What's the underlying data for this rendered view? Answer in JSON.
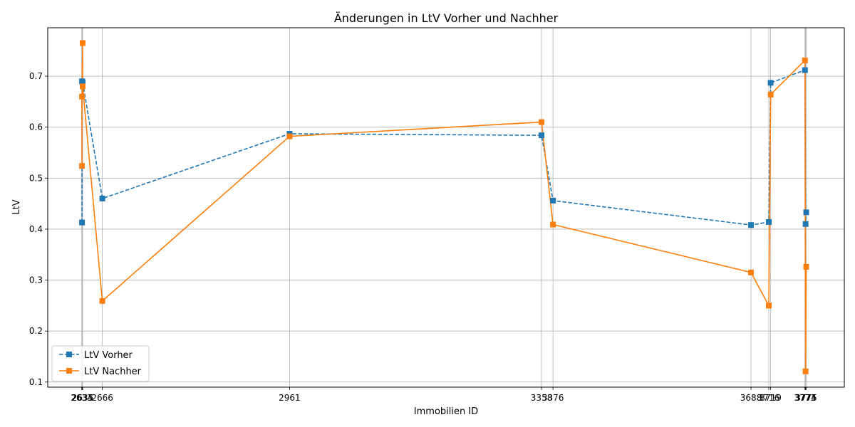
{
  "chart_data": {
    "type": "line",
    "title": "Änderungen in LtV Vorher und Nachher",
    "xlabel": "Immobilien ID",
    "ylabel": "LtV",
    "x": [
      2634,
      2634,
      2635,
      2635,
      2666,
      2961,
      3358,
      3376,
      3688,
      3716,
      3719,
      3773,
      3774,
      3775
    ],
    "xlim": [
      2580,
      3835
    ],
    "ylim": [
      0.09,
      0.795
    ],
    "yticks": [
      0.1,
      0.2,
      0.3,
      0.4,
      0.5,
      0.6,
      0.7
    ],
    "ytick_labels": [
      "0.1",
      "0.2",
      "0.3",
      "0.4",
      "0.5",
      "0.6",
      "0.7"
    ],
    "xtick_labels": [
      "2633",
      "2634",
      "2635",
      "2666",
      "2961",
      "3358",
      "3376",
      "3688",
      "3716",
      "3719",
      "3773",
      "3774",
      "3775"
    ],
    "xtick_values": [
      2633.5,
      2634,
      2635,
      2666,
      2961,
      3358,
      3376,
      3688,
      3716,
      3719,
      3773,
      3774,
      3775
    ],
    "grid": true,
    "legend_position": "lower-left",
    "series": [
      {
        "name": "LtV Vorher",
        "color": "#1f77b4",
        "linestyle": "dashed",
        "marker": "square",
        "values": [
          0.413,
          0.69,
          0.688,
          0.688,
          0.46,
          0.587,
          0.584,
          0.456,
          0.408,
          0.414,
          0.687,
          0.712,
          0.41,
          0.433
        ]
      },
      {
        "name": "LtV Nachher",
        "color": "#ff7f0e",
        "linestyle": "solid",
        "marker": "square",
        "values": [
          0.524,
          0.66,
          0.765,
          0.68,
          0.259,
          0.582,
          0.61,
          0.409,
          0.315,
          0.25,
          0.664,
          0.731,
          0.121,
          0.326
        ]
      }
    ]
  }
}
